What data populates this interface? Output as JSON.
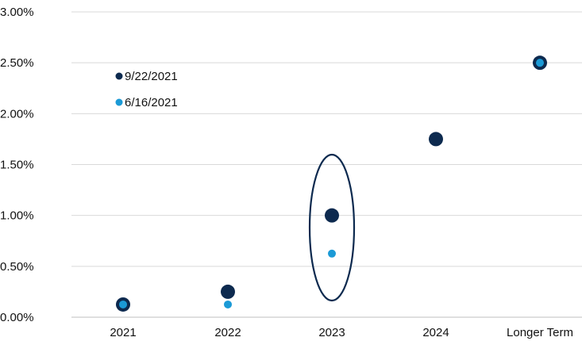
{
  "chart_data": {
    "type": "scatter",
    "categories": [
      "2021",
      "2022",
      "2023",
      "2024",
      "Longer Term"
    ],
    "y_ticks": [
      "0.00%",
      "0.50%",
      "1.00%",
      "1.50%",
      "2.00%",
      "2.50%",
      "3.00%"
    ],
    "ylim": [
      0,
      3
    ],
    "grid": true,
    "legend_placement": "top-left",
    "series": [
      {
        "name": "9/22/2021",
        "color": "#0d2a4f",
        "values": [
          0.125,
          0.25,
          1.0,
          1.75,
          2.5
        ]
      },
      {
        "name": "6/16/2021",
        "color": "#1b9ad6",
        "values": [
          0.125,
          0.125,
          0.625,
          null,
          2.5
        ]
      }
    ],
    "annotations": [
      {
        "type": "ellipse-highlight",
        "category": "2023",
        "color": "#0d2a4f"
      }
    ]
  }
}
